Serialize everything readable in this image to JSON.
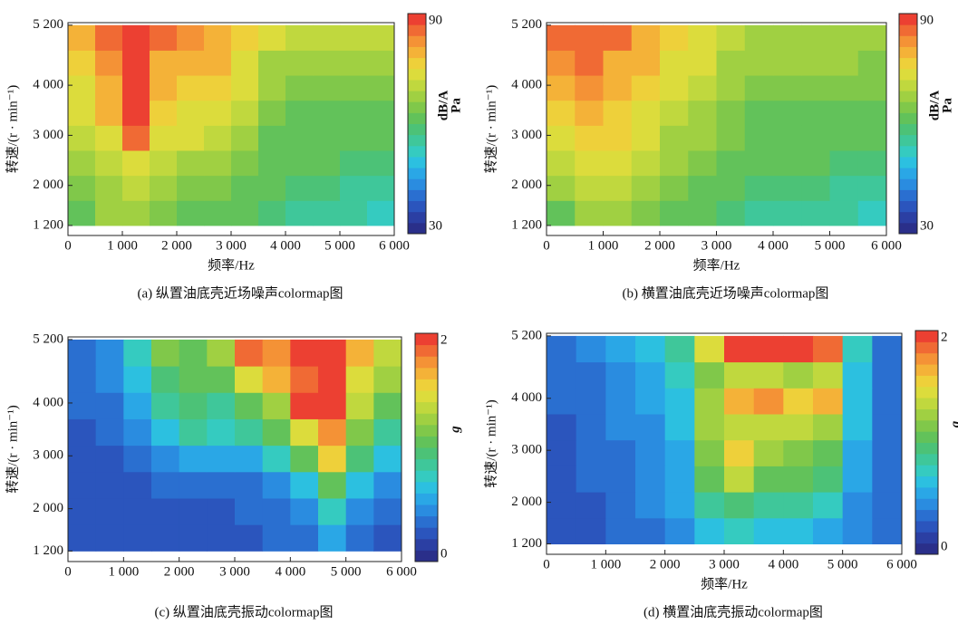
{
  "chart_data": [
    {
      "type": "heatmap",
      "title": "(a) 纵置油底壳近场噪声colormap图",
      "xlabel": "频率/Hz",
      "ylabel": "转速/(r · min⁻¹)",
      "colorbar_label": [
        "dB/A",
        "Pa"
      ],
      "xlim": [
        0,
        6000
      ],
      "ylim": [
        1000,
        5250
      ],
      "xticks": [
        0,
        {
          "value": 1000,
          "label": "1 000"
        },
        {
          "value": 2000,
          "label": "2 000"
        },
        {
          "value": 3000,
          "label": "3 000"
        },
        {
          "value": 4000,
          "label": "4 000"
        },
        {
          "value": 5000,
          "label": "5 000"
        },
        {
          "value": 6000,
          "label": "6 000"
        }
      ],
      "yticks": [
        {
          "value": 1200,
          "label": "1 200"
        },
        {
          "value": 2000,
          "label": "2 000"
        },
        {
          "value": 3000,
          "label": "3 000"
        },
        {
          "value": 4000,
          "label": "4 000"
        },
        {
          "value": 5200,
          "label": "5 200"
        }
      ],
      "clim": [
        30,
        90
      ],
      "cticks": [
        30,
        90
      ],
      "colormap": [
        "#2a2f8a",
        "#2b3fa3",
        "#2b55bd",
        "#2a6fd0",
        "#2a8ce0",
        "#2aa7e6",
        "#2cc0e0",
        "#35cbc0",
        "#3fc79a",
        "#4cc277",
        "#62c25a",
        "#80c84a",
        "#a0d042",
        "#c0d83e",
        "#dcdc3c",
        "#eed03a",
        "#f4b238",
        "#f49236",
        "#f06a34",
        "#ec4032"
      ],
      "xbins": [
        0,
        500,
        1000,
        1500,
        2000,
        2500,
        3000,
        3500,
        4000,
        4500,
        5000,
        5500,
        6000
      ],
      "ybins": [
        1200,
        1700,
        2200,
        2700,
        3200,
        3700,
        4200,
        4700,
        5200
      ],
      "z": [
        [
          62,
          66,
          68,
          64,
          62,
          62,
          60,
          58,
          56,
          55,
          54,
          52
        ],
        [
          64,
          68,
          70,
          66,
          64,
          64,
          62,
          60,
          58,
          57,
          56,
          54
        ],
        [
          66,
          70,
          74,
          70,
          68,
          66,
          64,
          62,
          60,
          60,
          58,
          58
        ],
        [
          70,
          74,
          84,
          74,
          72,
          70,
          66,
          62,
          60,
          60,
          60,
          60
        ],
        [
          72,
          78,
          88,
          76,
          74,
          74,
          70,
          64,
          62,
          62,
          62,
          62
        ],
        [
          74,
          80,
          90,
          78,
          76,
          76,
          74,
          66,
          64,
          64,
          64,
          64
        ],
        [
          76,
          82,
          90,
          80,
          78,
          78,
          74,
          68,
          68,
          68,
          68,
          68
        ],
        [
          78,
          84,
          90,
          84,
          82,
          80,
          76,
          72,
          70,
          70,
          70,
          70
        ]
      ]
    },
    {
      "type": "heatmap",
      "title": "(b) 横置油底壳近场噪声colormap图",
      "xlabel": "频率/Hz",
      "ylabel": "转速/(r · min⁻¹)",
      "colorbar_label": [
        "dB/A",
        "Pa"
      ],
      "xlim": [
        0,
        6000
      ],
      "ylim": [
        1000,
        5250
      ],
      "xticks": [
        0,
        {
          "value": 1000,
          "label": "1 000"
        },
        {
          "value": 2000,
          "label": "2 000"
        },
        {
          "value": 3000,
          "label": "3 000"
        },
        {
          "value": 4000,
          "label": "4 000"
        },
        {
          "value": 5000,
          "label": "5 000"
        },
        {
          "value": 6000,
          "label": "6 000"
        }
      ],
      "yticks": [
        {
          "value": 1200,
          "label": "1 200"
        },
        {
          "value": 2000,
          "label": "2 000"
        },
        {
          "value": 3000,
          "label": "3 000"
        },
        {
          "value": 4000,
          "label": "4 000"
        },
        {
          "value": 5200,
          "label": "5 200"
        }
      ],
      "clim": [
        30,
        90
      ],
      "cticks": [
        30,
        90
      ],
      "colormap": [
        "#2a2f8a",
        "#2b3fa3",
        "#2b55bd",
        "#2a6fd0",
        "#2a8ce0",
        "#2aa7e6",
        "#2cc0e0",
        "#35cbc0",
        "#3fc79a",
        "#4cc277",
        "#62c25a",
        "#80c84a",
        "#a0d042",
        "#c0d83e",
        "#dcdc3c",
        "#eed03a",
        "#f4b238",
        "#f49236",
        "#f06a34",
        "#ec4032"
      ],
      "xbins": [
        0,
        500,
        1000,
        1500,
        2000,
        2500,
        3000,
        3500,
        4000,
        4500,
        5000,
        5500,
        6000
      ],
      "ybins": [
        1200,
        1700,
        2200,
        2700,
        3200,
        3700,
        4200,
        4700,
        5200
      ],
      "z": [
        [
          62,
          66,
          66,
          64,
          62,
          60,
          58,
          56,
          55,
          55,
          54,
          52
        ],
        [
          66,
          70,
          70,
          68,
          64,
          62,
          60,
          58,
          58,
          57,
          56,
          55
        ],
        [
          70,
          72,
          74,
          70,
          66,
          64,
          62,
          60,
          60,
          60,
          58,
          58
        ],
        [
          72,
          76,
          76,
          72,
          68,
          66,
          64,
          62,
          62,
          62,
          60,
          60
        ],
        [
          76,
          80,
          76,
          74,
          70,
          68,
          64,
          62,
          62,
          62,
          62,
          62
        ],
        [
          80,
          82,
          78,
          76,
          72,
          70,
          66,
          64,
          64,
          64,
          64,
          64
        ],
        [
          82,
          84,
          80,
          78,
          74,
          72,
          68,
          66,
          66,
          66,
          66,
          64
        ],
        [
          84,
          86,
          84,
          80,
          76,
          74,
          70,
          68,
          68,
          68,
          68,
          66
        ]
      ]
    },
    {
      "type": "heatmap",
      "title": "(c) 纵置油底壳振动colormap图",
      "ylabel": "转速/(r · min⁻¹)",
      "colorbar_label": [
        "g"
      ],
      "xlim": [
        0,
        6000
      ],
      "ylim": [
        1000,
        5250
      ],
      "xticks": [
        0,
        {
          "value": 1000,
          "label": "1 000"
        },
        {
          "value": 2000,
          "label": "2 000"
        },
        {
          "value": 3000,
          "label": "3 000"
        },
        {
          "value": 4000,
          "label": "4 000"
        },
        {
          "value": 5000,
          "label": "5 000"
        },
        {
          "value": 6000,
          "label": "6 000"
        }
      ],
      "yticks": [
        {
          "value": 1200,
          "label": "1 200"
        },
        {
          "value": 2000,
          "label": "2 000"
        },
        {
          "value": 3000,
          "label": "3 000"
        },
        {
          "value": 4000,
          "label": "4 000"
        },
        {
          "value": 5200,
          "label": "5 200"
        }
      ],
      "clim": [
        0,
        2
      ],
      "cticks": [
        0,
        2
      ],
      "colormap": [
        "#2a2f8a",
        "#2b3fa3",
        "#2b55bd",
        "#2a6fd0",
        "#2a8ce0",
        "#2aa7e6",
        "#2cc0e0",
        "#35cbc0",
        "#3fc79a",
        "#4cc277",
        "#62c25a",
        "#80c84a",
        "#a0d042",
        "#c0d83e",
        "#dcdc3c",
        "#eed03a",
        "#f4b238",
        "#f49236",
        "#f06a34",
        "#ec4032"
      ],
      "xbins": [
        0,
        500,
        1000,
        1500,
        2000,
        2500,
        3000,
        3500,
        4000,
        4500,
        5000,
        5500,
        6000
      ],
      "ybins": [
        1200,
        1700,
        2200,
        2700,
        3200,
        3700,
        4200,
        4700,
        5200
      ],
      "z": [
        [
          0.2,
          0.2,
          0.2,
          0.2,
          0.2,
          0.2,
          0.2,
          0.3,
          0.3,
          0.5,
          0.3,
          0.2
        ],
        [
          0.2,
          0.2,
          0.2,
          0.2,
          0.2,
          0.2,
          0.3,
          0.3,
          0.4,
          0.7,
          0.4,
          0.3
        ],
        [
          0.2,
          0.2,
          0.2,
          0.3,
          0.3,
          0.3,
          0.3,
          0.4,
          0.6,
          1.0,
          0.6,
          0.4
        ],
        [
          0.2,
          0.2,
          0.3,
          0.4,
          0.5,
          0.5,
          0.5,
          0.7,
          1.0,
          1.5,
          0.9,
          0.6
        ],
        [
          0.2,
          0.3,
          0.4,
          0.6,
          0.8,
          0.7,
          0.8,
          1.0,
          1.4,
          1.7,
          1.1,
          0.8
        ],
        [
          0.3,
          0.3,
          0.5,
          0.8,
          0.9,
          0.8,
          1.0,
          1.2,
          1.9,
          2.0,
          1.3,
          1.0
        ],
        [
          0.3,
          0.4,
          0.6,
          0.9,
          1.0,
          1.0,
          1.4,
          1.6,
          1.8,
          2.0,
          1.4,
          1.2
        ],
        [
          0.3,
          0.4,
          0.7,
          1.1,
          1.0,
          1.2,
          1.8,
          1.7,
          2.0,
          2.0,
          1.6,
          1.3
        ]
      ]
    },
    {
      "type": "heatmap",
      "title": "(d) 横置油底壳振动colormap图",
      "xlabel": "频率/Hz",
      "ylabel": "转速/(r · min⁻¹)",
      "colorbar_label": [
        "g"
      ],
      "xlim": [
        0,
        6000
      ],
      "ylim": [
        1000,
        5250
      ],
      "xticks": [
        0,
        {
          "value": 1000,
          "label": "1 000"
        },
        {
          "value": 2000,
          "label": "2 000"
        },
        {
          "value": 3000,
          "label": "3 000"
        },
        {
          "value": 4000,
          "label": "4 000"
        },
        {
          "value": 5000,
          "label": "5 000"
        },
        {
          "value": 6000,
          "label": "6 000"
        }
      ],
      "yticks": [
        {
          "value": 1200,
          "label": "1 200"
        },
        {
          "value": 2000,
          "label": "2 000"
        },
        {
          "value": 3000,
          "label": "3 000"
        },
        {
          "value": 4000,
          "label": "4 000"
        },
        {
          "value": 5200,
          "label": "5 200"
        }
      ],
      "clim": [
        0,
        2
      ],
      "cticks": [
        0,
        2
      ],
      "colormap": [
        "#2a2f8a",
        "#2b3fa3",
        "#2b55bd",
        "#2a6fd0",
        "#2a8ce0",
        "#2aa7e6",
        "#2cc0e0",
        "#35cbc0",
        "#3fc79a",
        "#4cc277",
        "#62c25a",
        "#80c84a",
        "#a0d042",
        "#c0d83e",
        "#dcdc3c",
        "#eed03a",
        "#f4b238",
        "#f49236",
        "#f06a34",
        "#ec4032"
      ],
      "xbins": [
        0,
        500,
        1000,
        1500,
        2000,
        2500,
        3000,
        3500,
        4000,
        4500,
        5000,
        5500,
        6000
      ],
      "ybins": [
        1200,
        1700,
        2200,
        2700,
        3200,
        3700,
        4200,
        4700,
        5200
      ],
      "z": [
        [
          0.2,
          0.2,
          0.3,
          0.3,
          0.4,
          0.6,
          0.7,
          0.6,
          0.6,
          0.5,
          0.4,
          0.3
        ],
        [
          0.2,
          0.2,
          0.3,
          0.4,
          0.5,
          0.8,
          0.9,
          0.8,
          0.8,
          0.7,
          0.4,
          0.3
        ],
        [
          0.2,
          0.3,
          0.3,
          0.4,
          0.5,
          1.0,
          1.3,
          1.0,
          1.0,
          0.9,
          0.5,
          0.3
        ],
        [
          0.2,
          0.3,
          0.3,
          0.4,
          0.5,
          1.1,
          1.5,
          1.2,
          1.1,
          1.0,
          0.5,
          0.3
        ],
        [
          0.2,
          0.3,
          0.4,
          0.4,
          0.6,
          1.2,
          1.3,
          1.3,
          1.3,
          1.2,
          0.6,
          0.3
        ],
        [
          0.3,
          0.3,
          0.4,
          0.5,
          0.6,
          1.2,
          1.6,
          1.7,
          1.5,
          1.6,
          0.6,
          0.3
        ],
        [
          0.3,
          0.3,
          0.4,
          0.5,
          0.7,
          1.1,
          1.3,
          1.3,
          1.2,
          1.3,
          0.6,
          0.3
        ],
        [
          0.3,
          0.4,
          0.5,
          0.6,
          0.8,
          1.4,
          1.9,
          2.0,
          1.9,
          1.8,
          0.7,
          0.3
        ]
      ]
    }
  ]
}
